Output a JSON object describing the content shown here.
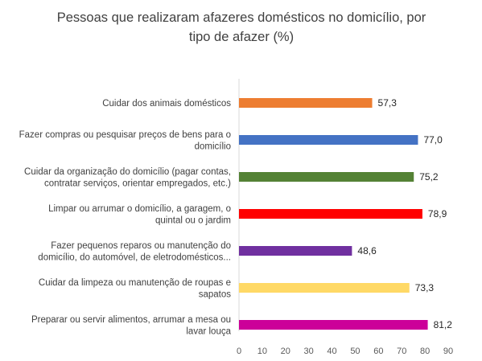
{
  "chart_data": {
    "type": "bar",
    "orientation": "horizontal",
    "title": "Pessoas que realizaram afazeres domésticos no domicílio, por tipo de afazer (%)",
    "title_lines": [
      "Pessoas que realizaram afazeres domésticos no domicílio, por",
      "tipo de afazer (%)"
    ],
    "categories": [
      "Cuidar dos animais domésticos",
      "Fazer compras ou pesquisar preços de bens para o domicílio",
      "Cuidar da organização do domicílio (pagar contas, contratar serviços, orientar empregados, etc.)",
      "Limpar ou arrumar o domicílio, a garagem, o quintal ou o jardim",
      "Fazer pequenos reparos ou manutenção do domicílio, do automóvel, de eletrodomésticos...",
      "Cuidar da limpeza ou manutenção de roupas e sapatos",
      "Preparar ou servir alimentos, arrumar a mesa ou lavar louça"
    ],
    "category_lines": [
      [
        "Cuidar dos animais domésticos"
      ],
      [
        "Fazer compras ou pesquisar preços de bens para o",
        "domicílio"
      ],
      [
        "Cuidar da organização do domicílio (pagar contas,",
        "contratar serviços, orientar empregados, etc.)"
      ],
      [
        "Limpar ou arrumar o domicílio, a garagem, o",
        "quintal ou  o jardim"
      ],
      [
        "Fazer pequenos reparos ou manutenção do",
        "domicílio, do automóvel, de eletrodomésticos..."
      ],
      [
        "Cuidar da limpeza ou manutenção de roupas e",
        "sapatos"
      ],
      [
        "Preparar ou servir alimentos, arrumar a mesa ou",
        "lavar louça"
      ]
    ],
    "values": [
      57.3,
      77.0,
      75.2,
      78.9,
      48.6,
      73.3,
      81.2
    ],
    "data_labels": [
      "57,3",
      "77,0",
      "75,2",
      "78,9",
      "48,6",
      "73,3",
      "81,2"
    ],
    "colors": [
      "#ED7D31",
      "#4472C4",
      "#548235",
      "#FF0000",
      "#7030A0",
      "#FFD966",
      "#CC0099"
    ],
    "xlim": [
      0,
      90
    ],
    "xticks": [
      0,
      10,
      20,
      30,
      40,
      50,
      60,
      70,
      80,
      90
    ],
    "grid": false,
    "legend": "none"
  }
}
